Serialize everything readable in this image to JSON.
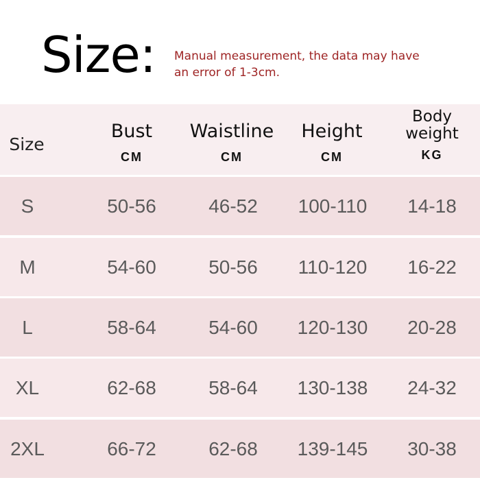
{
  "title": "Size:",
  "note": "Manual measurement, the data may have an error of 1-3cm.",
  "colors": {
    "note": "#9e2424",
    "header_bg": "#f8eef0",
    "row_dark": "#f2dfe1",
    "row_light": "#f7e8ea"
  },
  "columns": [
    {
      "name": "Size",
      "unit": ""
    },
    {
      "name": "Bust",
      "unit": "CM"
    },
    {
      "name": "Waistline",
      "unit": "CM"
    },
    {
      "name": "Height",
      "unit": "CM"
    },
    {
      "name": "Body weight",
      "unit": "KG"
    }
  ],
  "rows": [
    [
      "S",
      "50-56",
      "46-52",
      "100-110",
      "14-18"
    ],
    [
      "M",
      "54-60",
      "50-56",
      "110-120",
      "16-22"
    ],
    [
      "L",
      "58-64",
      "54-60",
      "120-130",
      "20-28"
    ],
    [
      "XL",
      "62-68",
      "58-64",
      "130-138",
      "24-32"
    ],
    [
      "2XL",
      "66-72",
      "62-68",
      "139-145",
      "30-38"
    ]
  ]
}
